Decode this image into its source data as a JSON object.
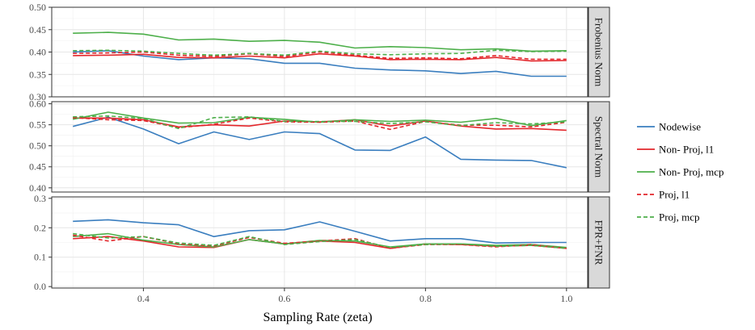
{
  "chart_data": {
    "type": "line",
    "xlabel": "Sampling Rate (zeta)",
    "x": [
      0.3,
      0.35,
      0.4,
      0.45,
      0.5,
      0.55,
      0.6,
      0.65,
      0.7,
      0.75,
      0.8,
      0.85,
      0.9,
      0.95,
      1.0
    ],
    "xlim": [
      0.27,
      1.03
    ],
    "xticks": [
      0.4,
      0.6,
      0.8,
      1.0
    ],
    "xtick_labels": [
      "0.4",
      "0.6",
      "0.8",
      "1.0"
    ],
    "legend": {
      "placement": "right",
      "entries": [
        {
          "name": "Nodewise",
          "color": "#3a7ebf",
          "dash": "solid"
        },
        {
          "name": "Non- Proj, l1",
          "color": "#e3262b",
          "dash": "solid"
        },
        {
          "name": "Non- Proj, mcp",
          "color": "#4daf4a",
          "dash": "solid"
        },
        {
          "name": "Proj, l1",
          "color": "#e3262b",
          "dash": "dashed"
        },
        {
          "name": "Proj, mcp",
          "color": "#4daf4a",
          "dash": "dashed"
        }
      ]
    },
    "panels": [
      {
        "strip": "Frobenius Norm",
        "ylim": [
          0.3,
          0.5
        ],
        "yticks": [
          0.3,
          0.35,
          0.4,
          0.45,
          0.5
        ],
        "ytick_labels": [
          "0.30",
          "0.35",
          "0.40",
          "0.45",
          "0.50"
        ],
        "series": [
          {
            "name": "Nodewise",
            "values": [
              0.4,
              0.403,
              0.391,
              0.383,
              0.387,
              0.385,
              0.375,
              0.375,
              0.364,
              0.36,
              0.358,
              0.352,
              0.357,
              0.346,
              0.346
            ]
          },
          {
            "name": "Non- Proj, l1",
            "values": [
              0.392,
              0.393,
              0.395,
              0.388,
              0.387,
              0.391,
              0.387,
              0.396,
              0.391,
              0.383,
              0.384,
              0.383,
              0.388,
              0.38,
              0.381
            ]
          },
          {
            "name": "Non- Proj, mcp",
            "values": [
              0.442,
              0.444,
              0.44,
              0.427,
              0.429,
              0.424,
              0.426,
              0.422,
              0.409,
              0.412,
              0.41,
              0.405,
              0.407,
              0.402,
              0.403
            ]
          },
          {
            "name": "Proj, l1",
            "values": [
              0.397,
              0.398,
              0.4,
              0.393,
              0.39,
              0.396,
              0.39,
              0.4,
              0.393,
              0.386,
              0.387,
              0.385,
              0.392,
              0.384,
              0.384
            ]
          },
          {
            "name": "Proj, mcp",
            "values": [
              0.403,
              0.404,
              0.402,
              0.397,
              0.393,
              0.397,
              0.393,
              0.402,
              0.396,
              0.394,
              0.396,
              0.397,
              0.404,
              0.401,
              0.402
            ]
          }
        ]
      },
      {
        "strip": "Spectral Norm",
        "ylim": [
          0.39,
          0.605
        ],
        "yticks": [
          0.4,
          0.45,
          0.5,
          0.55,
          0.6
        ],
        "ytick_labels": [
          "0.40",
          "0.45",
          "0.50",
          "0.55",
          "0.60"
        ],
        "series": [
          {
            "name": "Nodewise",
            "values": [
              0.546,
              0.568,
              0.54,
              0.505,
              0.533,
              0.515,
              0.533,
              0.529,
              0.49,
              0.489,
              0.521,
              0.468,
              0.466,
              0.465,
              0.448
            ]
          },
          {
            "name": "Non- Proj, l1",
            "values": [
              0.566,
              0.566,
              0.562,
              0.545,
              0.55,
              0.547,
              0.559,
              0.557,
              0.562,
              0.547,
              0.559,
              0.547,
              0.54,
              0.541,
              0.537
            ]
          },
          {
            "name": "Non- Proj, mcp",
            "values": [
              0.563,
              0.58,
              0.566,
              0.554,
              0.555,
              0.568,
              0.563,
              0.556,
              0.562,
              0.558,
              0.561,
              0.556,
              0.565,
              0.548,
              0.56
            ]
          },
          {
            "name": "Proj, l1",
            "values": [
              0.567,
              0.562,
              0.56,
              0.543,
              0.551,
              0.566,
              0.557,
              0.556,
              0.559,
              0.539,
              0.558,
              0.549,
              0.549,
              0.545,
              0.556
            ]
          },
          {
            "name": "Proj, mcp",
            "values": [
              0.569,
              0.571,
              0.565,
              0.541,
              0.567,
              0.569,
              0.558,
              0.558,
              0.558,
              0.553,
              0.557,
              0.548,
              0.555,
              0.552,
              0.557
            ]
          }
        ]
      },
      {
        "strip": "FPR+FNR",
        "ylim": [
          -0.005,
          0.305
        ],
        "yticks": [
          0.0,
          0.1,
          0.2,
          0.3
        ],
        "ytick_labels": [
          "0.0",
          "0.1",
          "0.2",
          "0.3"
        ],
        "series": [
          {
            "name": "Nodewise",
            "values": [
              0.222,
              0.227,
              0.217,
              0.21,
              0.17,
              0.19,
              0.193,
              0.22,
              0.188,
              0.155,
              0.163,
              0.163,
              0.148,
              0.15,
              0.15
            ]
          },
          {
            "name": "Non- Proj, l1",
            "values": [
              0.163,
              0.17,
              0.155,
              0.135,
              0.133,
              0.16,
              0.145,
              0.155,
              0.15,
              0.13,
              0.145,
              0.143,
              0.137,
              0.14,
              0.13
            ]
          },
          {
            "name": "Non- Proj, mcp",
            "values": [
              0.17,
              0.18,
              0.158,
              0.143,
              0.135,
              0.16,
              0.145,
              0.157,
              0.155,
              0.135,
              0.145,
              0.145,
              0.14,
              0.143,
              0.133
            ]
          },
          {
            "name": "Proj, l1",
            "values": [
              0.175,
              0.155,
              0.17,
              0.145,
              0.138,
              0.167,
              0.147,
              0.155,
              0.163,
              0.13,
              0.143,
              0.143,
              0.135,
              0.143,
              0.13
            ]
          },
          {
            "name": "Proj, mcp",
            "values": [
              0.18,
              0.165,
              0.17,
              0.148,
              0.14,
              0.17,
              0.143,
              0.153,
              0.16,
              0.133,
              0.143,
              0.145,
              0.137,
              0.14,
              0.13
            ]
          }
        ]
      }
    ]
  }
}
